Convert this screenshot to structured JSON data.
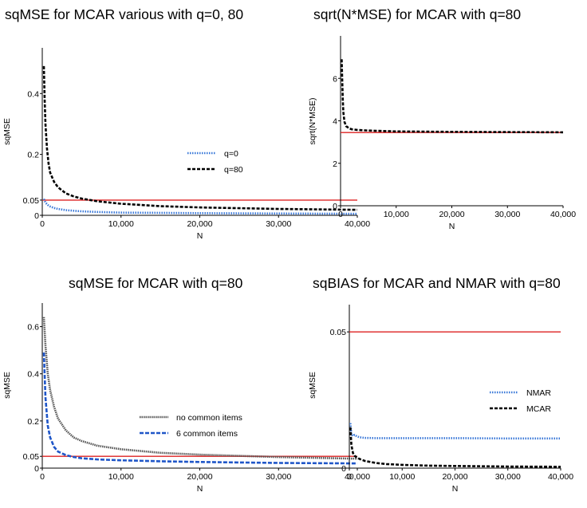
{
  "chart_data": [
    {
      "type": "line",
      "title": "sqMSE for MCAR various with q=0, 80",
      "xlabel": "N",
      "ylabel": "sqMSE",
      "xlim": [
        0,
        40000
      ],
      "ylim": [
        0,
        0.55
      ],
      "yticks": [
        {
          "value": 0,
          "label": "0"
        },
        {
          "value": 0.05,
          "label": "0.05"
        },
        {
          "value": 0.2,
          "label": "0.2"
        },
        {
          "value": 0.4,
          "label": "0.4"
        }
      ],
      "xticks": [
        {
          "value": 0,
          "label": "0"
        },
        {
          "value": 10000,
          "label": "10,000"
        },
        {
          "value": 20000,
          "label": "20,000"
        },
        {
          "value": 30000,
          "label": "30,000"
        },
        {
          "value": 40000,
          "label": "40,000"
        }
      ],
      "reference_lines": [
        {
          "value": 0.05,
          "color": "#dd2222"
        }
      ],
      "legend": "middle-right",
      "series": [
        {
          "name": "q=0",
          "color": "#3a78d8",
          "dash": "1.5,1.5",
          "x": [
            200,
            400,
            700,
            1000,
            1500,
            2000,
            3000,
            4000,
            5000,
            7000,
            10000,
            15000,
            20000,
            30000,
            40000
          ],
          "y": [
            0.054,
            0.042,
            0.034,
            0.029,
            0.024,
            0.021,
            0.017,
            0.015,
            0.013,
            0.011,
            0.009,
            0.008,
            0.007,
            0.006,
            0.005
          ]
        },
        {
          "name": "q=80",
          "color": "#000000",
          "dash": "4,2",
          "x": [
            200,
            300,
            400,
            600,
            800,
            1000,
            1500,
            2000,
            3000,
            4000,
            5000,
            7000,
            10000,
            15000,
            20000,
            30000,
            40000
          ],
          "y": [
            0.49,
            0.38,
            0.3,
            0.22,
            0.17,
            0.14,
            0.11,
            0.092,
            0.072,
            0.062,
            0.055,
            0.046,
            0.038,
            0.03,
            0.026,
            0.021,
            0.018
          ]
        }
      ]
    },
    {
      "type": "line",
      "title": "sqrt(N*MSE) for MCAR with q=80",
      "xlabel": "N",
      "ylabel": "sqrt(N*MSE)",
      "xlim": [
        0,
        40000
      ],
      "ylim": [
        0,
        8
      ],
      "yticks": [
        {
          "value": 0,
          "label": "0"
        },
        {
          "value": 2,
          "label": "2"
        },
        {
          "value": 4,
          "label": "4"
        },
        {
          "value": 6,
          "label": "6"
        }
      ],
      "xticks": [
        {
          "value": 0,
          "label": "0"
        },
        {
          "value": 10000,
          "label": "10,000"
        },
        {
          "value": 20000,
          "label": "20,000"
        },
        {
          "value": 30000,
          "label": "30,000"
        },
        {
          "value": 40000,
          "label": "40,000"
        }
      ],
      "reference_lines": [
        {
          "value": 3.45,
          "color": "#dd2222"
        }
      ],
      "legend": "none",
      "series": [
        {
          "name": "q=80",
          "color": "#000000",
          "dash": "4,2",
          "x": [
            200,
            300,
            400,
            500,
            700,
            1000,
            1500,
            2000,
            3000,
            5000,
            10000,
            20000,
            30000,
            40000
          ],
          "y": [
            6.9,
            5.9,
            5.0,
            4.4,
            3.95,
            3.75,
            3.65,
            3.6,
            3.57,
            3.54,
            3.5,
            3.48,
            3.47,
            3.46
          ]
        }
      ]
    },
    {
      "type": "line",
      "title": "sqMSE for MCAR with q=80",
      "xlabel": "N",
      "ylabel": "sqMSE",
      "xlim": [
        0,
        40000
      ],
      "ylim": [
        0,
        0.7
      ],
      "yticks": [
        {
          "value": 0,
          "label": "0"
        },
        {
          "value": 0.05,
          "label": "0.05"
        },
        {
          "value": 0.2,
          "label": "0.2"
        },
        {
          "value": 0.4,
          "label": "0.4"
        },
        {
          "value": 0.6,
          "label": "0.6"
        }
      ],
      "xticks": [
        {
          "value": 0,
          "label": "0"
        },
        {
          "value": 10000,
          "label": "10,000"
        },
        {
          "value": 20000,
          "label": "20,000"
        },
        {
          "value": 30000,
          "label": "30,000"
        },
        {
          "value": 40000,
          "label": "40,000"
        }
      ],
      "reference_lines": [
        {
          "value": 0.05,
          "color": "#dd2222"
        }
      ],
      "legend": "middle-right",
      "series": [
        {
          "name": "no common items",
          "color": "#555555",
          "dash": "1.5,1",
          "x": [
            200,
            400,
            700,
            1000,
            1500,
            2000,
            3000,
            4000,
            5000,
            7000,
            10000,
            15000,
            20000,
            30000,
            40000
          ],
          "y": [
            0.64,
            0.52,
            0.4,
            0.33,
            0.26,
            0.21,
            0.16,
            0.13,
            0.115,
            0.095,
            0.08,
            0.065,
            0.057,
            0.047,
            0.04
          ]
        },
        {
          "name": "6 common items",
          "color": "#1f56c8",
          "dash": "5,2",
          "x": [
            200,
            400,
            700,
            1000,
            1500,
            2000,
            3000,
            4000,
            5000,
            7000,
            10000,
            15000,
            20000,
            30000,
            40000
          ],
          "y": [
            0.49,
            0.3,
            0.18,
            0.13,
            0.09,
            0.07,
            0.055,
            0.047,
            0.042,
            0.037,
            0.033,
            0.029,
            0.026,
            0.022,
            0.02
          ]
        }
      ]
    },
    {
      "type": "line",
      "title": "sqBIAS for MCAR and NMAR with q=80",
      "xlabel": "N",
      "ylabel": "sqMSE",
      "xlim": [
        0,
        40000
      ],
      "ylim": [
        0,
        0.06
      ],
      "yticks": [
        {
          "value": 0,
          "label": "0"
        },
        {
          "value": 0.05,
          "label": "0.05"
        }
      ],
      "xticks": [
        {
          "value": 0,
          "label": "0"
        },
        {
          "value": 10000,
          "label": "10,000"
        },
        {
          "value": 20000,
          "label": "20,000"
        },
        {
          "value": 30000,
          "label": "30,000"
        },
        {
          "value": 40000,
          "label": "40,000"
        }
      ],
      "reference_lines": [
        {
          "value": 0.05,
          "color": "#dd2222"
        }
      ],
      "legend": "middle-right",
      "series": [
        {
          "name": "NMAR",
          "color": "#3a78d8",
          "dash": "1.5,1.5",
          "x": [
            200,
            400,
            700,
            1000,
            1500,
            2000,
            3000,
            5000,
            10000,
            20000,
            30000,
            40000
          ],
          "y": [
            0.0165,
            0.0125,
            0.0118,
            0.0122,
            0.0116,
            0.0113,
            0.0111,
            0.011,
            0.011,
            0.011,
            0.0109,
            0.0109
          ]
        },
        {
          "name": "MCAR",
          "color": "#000000",
          "dash": "4,2",
          "x": [
            200,
            400,
            700,
            1000,
            1500,
            2000,
            3000,
            5000,
            7000,
            10000,
            15000,
            20000,
            30000,
            40000
          ],
          "y": [
            0.015,
            0.0085,
            0.0055,
            0.0045,
            0.0038,
            0.0033,
            0.0026,
            0.0019,
            0.0015,
            0.0012,
            0.0009,
            0.0008,
            0.0006,
            0.0005
          ]
        }
      ]
    }
  ]
}
